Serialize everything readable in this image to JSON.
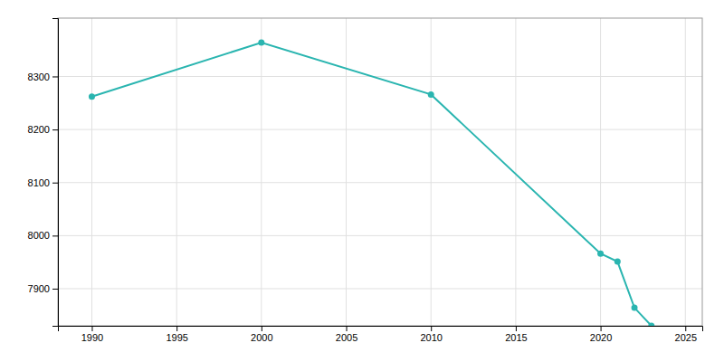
{
  "chart_data": {
    "type": "line",
    "x": [
      1990,
      2000,
      2010,
      2020,
      2021,
      2022,
      2023
    ],
    "values": [
      8262,
      8364,
      8266,
      7966,
      7951,
      7864,
      7830
    ],
    "color": "#2ab5b0",
    "marker": "circle",
    "xlim": [
      1988,
      2026
    ],
    "ylim": [
      7830,
      8410
    ],
    "xticks": [
      1990,
      1995,
      2000,
      2005,
      2010,
      2015,
      2020,
      2025
    ],
    "yticks": [
      7900,
      8000,
      8100,
      8200,
      8300
    ],
    "grid": true
  }
}
